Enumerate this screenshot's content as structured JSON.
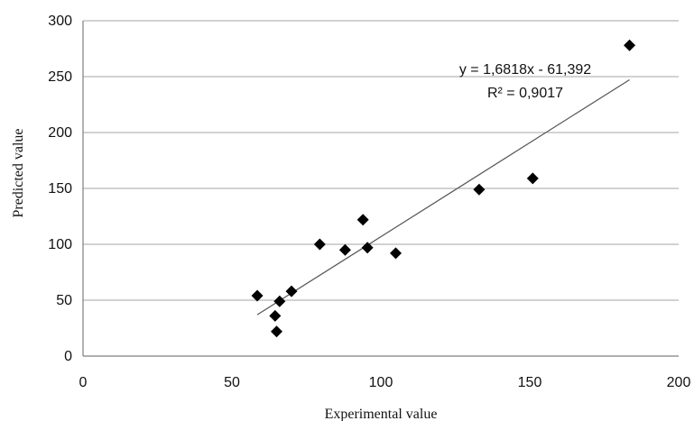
{
  "chart_data": {
    "type": "scatter",
    "xlabel": "Experimental value",
    "ylabel": "Predicted value",
    "xlim": [
      0,
      200
    ],
    "ylim": [
      0,
      300
    ],
    "x_ticks": [
      "0",
      "50",
      "100",
      "150",
      "200"
    ],
    "y_ticks": [
      "0",
      "50",
      "100",
      "150",
      "200",
      "250",
      "300"
    ],
    "grid": true,
    "marker": "diamond",
    "marker_color": "#000000",
    "points": [
      {
        "x": 58.5,
        "y": 54
      },
      {
        "x": 64.5,
        "y": 36
      },
      {
        "x": 65,
        "y": 22
      },
      {
        "x": 66,
        "y": 49
      },
      {
        "x": 70,
        "y": 58
      },
      {
        "x": 79.5,
        "y": 100
      },
      {
        "x": 88,
        "y": 95
      },
      {
        "x": 94,
        "y": 122
      },
      {
        "x": 95.5,
        "y": 97
      },
      {
        "x": 105,
        "y": 92
      },
      {
        "x": 133,
        "y": 149
      },
      {
        "x": 151,
        "y": 159
      },
      {
        "x": 183.5,
        "y": 278
      }
    ],
    "trendline": {
      "type": "linear",
      "slope": 1.6818,
      "intercept": -61.392,
      "x_range": [
        58.5,
        183.5
      ],
      "equation_text": "y = 1,6818x - 61,392",
      "r2_text": "R² = 0,9017"
    }
  }
}
